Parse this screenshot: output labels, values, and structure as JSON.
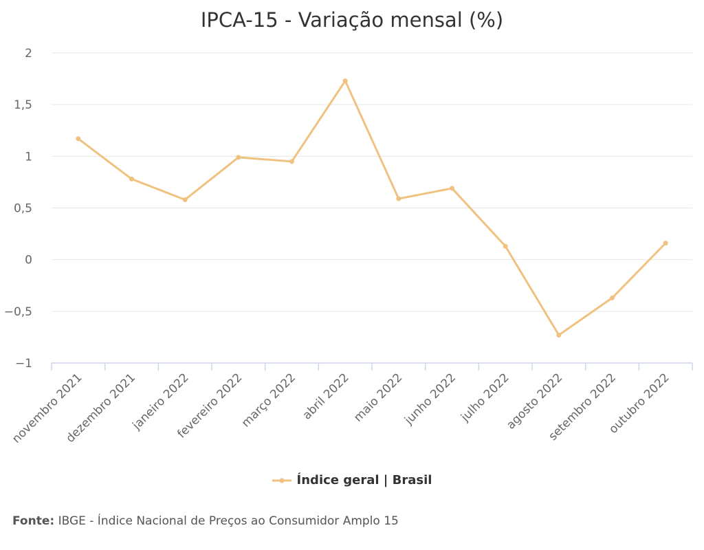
{
  "chart_data": {
    "type": "line",
    "title": "IPCA-15 - Variação mensal (%)",
    "categories": [
      "novembro 2021",
      "dezembro 2021",
      "janeiro 2022",
      "fevereiro 2022",
      "março 2022",
      "abril 2022",
      "maio 2022",
      "junho 2022",
      "julho 2022",
      "agosto 2022",
      "setembro 2022",
      "outubro 2022"
    ],
    "series": [
      {
        "name": "Índice geral | Brasil",
        "color": "#f0c27f",
        "values": [
          1.17,
          0.78,
          0.58,
          0.99,
          0.95,
          1.73,
          0.59,
          0.69,
          0.13,
          -0.73,
          -0.37,
          0.16
        ]
      }
    ],
    "yticks": [
      "2",
      "1,5",
      "1",
      "0,5",
      "0",
      "−0,5",
      "−1"
    ],
    "ytick_values": [
      2,
      1.5,
      1,
      0.5,
      0,
      -0.5,
      -1
    ],
    "ylim": [
      -1,
      2
    ],
    "grid": true,
    "legend_position": "bottom-center"
  },
  "source": {
    "label": "Fonte:",
    "text": "IBGE - Índice Nacional de Preços ao Consumidor Amplo 15"
  }
}
